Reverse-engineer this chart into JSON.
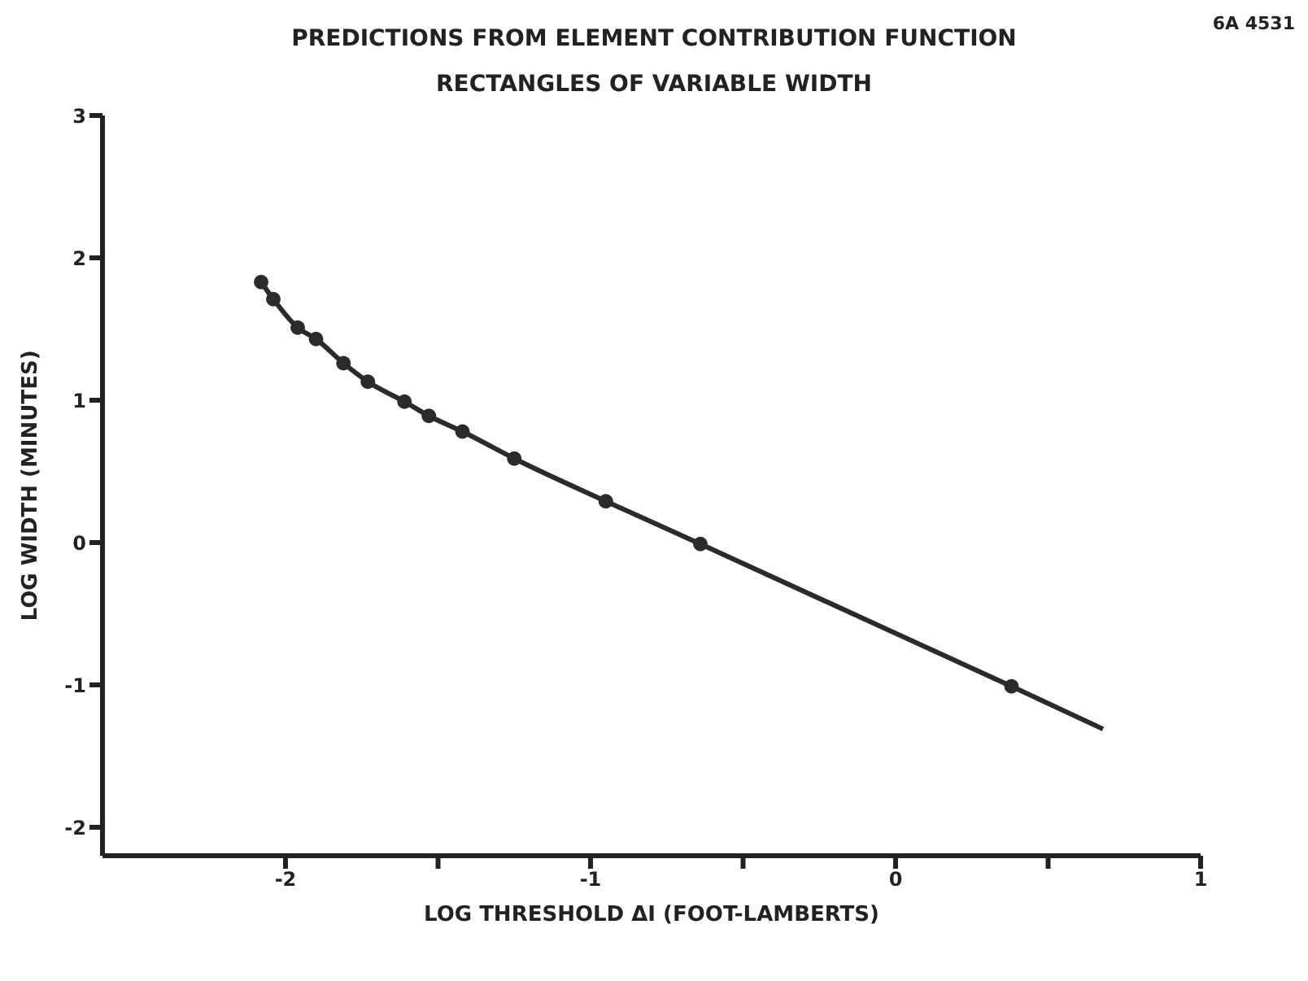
{
  "chart_data": {
    "type": "line",
    "title": "PREDICTIONS FROM ELEMENT CONTRIBUTION FUNCTION",
    "subtitle": "RECTANGLES OF VARIABLE WIDTH",
    "xlabel": "LOG THRESHOLD ΔI (FOOT-LAMBERTS)",
    "ylabel": "LOG WIDTH (MINUTES)",
    "annotations": [
      "6A 4531"
    ],
    "xlim": [
      -2.6,
      1
    ],
    "xticks": [
      -2,
      {
        "value": -1.5,
        "label": null
      },
      -1,
      {
        "value": -0.5,
        "label": null
      },
      0,
      {
        "value": 0.5,
        "label": null
      },
      1
    ],
    "ylim": [
      -2.2,
      3
    ],
    "yticks": [
      -2,
      -1,
      0,
      1,
      2,
      3
    ],
    "series": [
      {
        "marker": "none",
        "color": "#2b2b2b",
        "x": [
          -2.08,
          -2.04,
          -1.96,
          -1.9,
          -1.81,
          -1.73,
          -1.61,
          -1.53,
          -1.42,
          -1.25,
          -0.95,
          -0.64,
          0.38,
          0.68
        ],
        "values": [
          1.83,
          1.71,
          1.51,
          1.43,
          1.26,
          1.13,
          0.99,
          0.89,
          0.78,
          0.59,
          0.29,
          -0.01,
          -1.01,
          -1.31
        ]
      },
      {
        "type": "scatter",
        "marker": "circle",
        "color": "#2b2b2b",
        "x": [
          -2.08,
          -2.04,
          -1.96,
          -1.9,
          -1.81,
          -1.73,
          -1.61,
          -1.53,
          -1.42,
          -1.25,
          -0.95,
          -0.64,
          0.38
        ],
        "values": [
          1.83,
          1.71,
          1.51,
          1.43,
          1.26,
          1.13,
          0.99,
          0.89,
          0.78,
          0.59,
          0.29,
          -0.01,
          -1.01
        ]
      }
    ]
  }
}
